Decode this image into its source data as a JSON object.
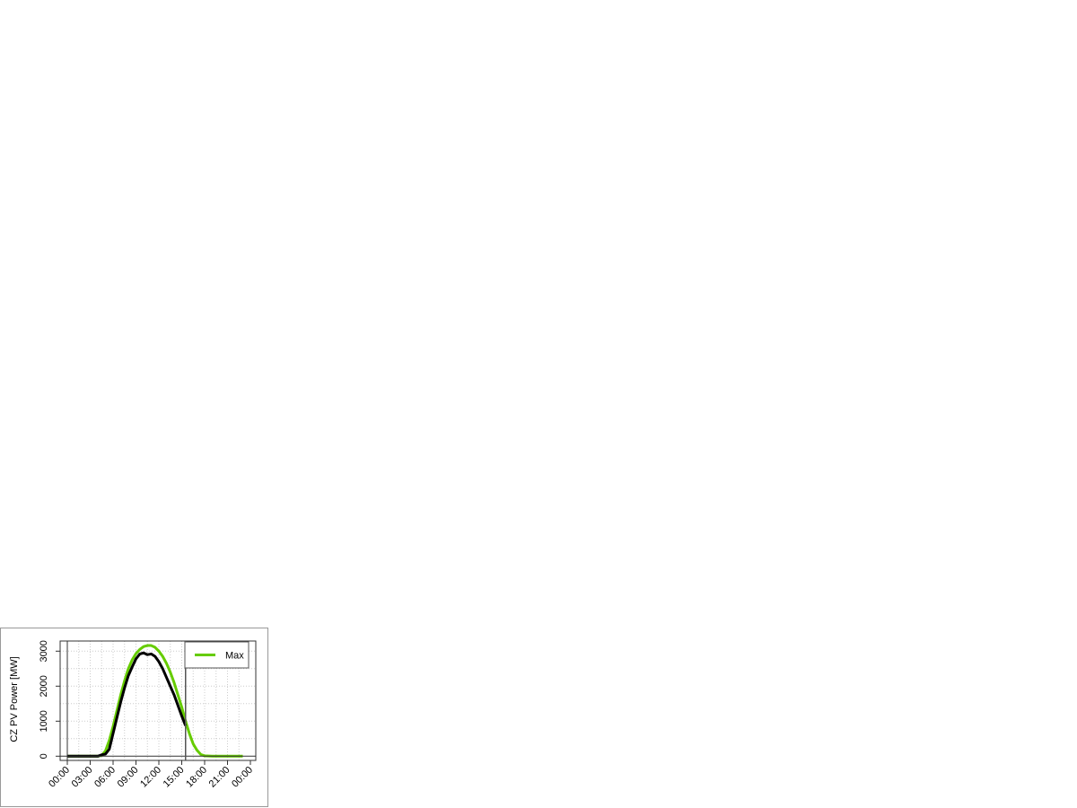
{
  "chart_data": {
    "type": "line",
    "title": "",
    "xlabel": "",
    "ylabel": "CZ PV Power [MW]",
    "xlim": [
      0,
      24
    ],
    "ylim": [
      0,
      3300
    ],
    "x_ticks": [
      "00:00",
      "03:00",
      "06:00",
      "09:00",
      "12:00",
      "15:00",
      "18:00",
      "21:00",
      "00:00"
    ],
    "y_ticks": [
      0,
      1000,
      2000,
      3000
    ],
    "grid": true,
    "legend_position": "top-right",
    "current_time_marker_hours": 15.5,
    "series": [
      {
        "name": "Max",
        "color": "#66cc00",
        "x": [
          0,
          1,
          2,
          3,
          4,
          4.5,
          5,
          5.5,
          6,
          6.5,
          7,
          7.5,
          8,
          8.5,
          9,
          9.5,
          10,
          10.5,
          11,
          11.5,
          12,
          12.5,
          13,
          13.5,
          14,
          14.5,
          15,
          15.5,
          16,
          16.5,
          17,
          17.5,
          18,
          19,
          20,
          21,
          22,
          23
        ],
        "y": [
          0,
          0,
          0,
          0,
          0,
          20,
          150,
          450,
          850,
          1300,
          1750,
          2150,
          2500,
          2750,
          2930,
          3050,
          3130,
          3160,
          3160,
          3110,
          3000,
          2850,
          2650,
          2400,
          2100,
          1750,
          1400,
          1000,
          650,
          350,
          170,
          50,
          10,
          0,
          0,
          0,
          0,
          0
        ]
      },
      {
        "color": "#000000",
        "x": [
          0,
          1,
          2,
          3,
          4,
          4.5,
          5,
          5.5,
          6,
          6.5,
          7,
          7.5,
          8,
          8.5,
          9,
          9.5,
          10,
          10.5,
          11,
          11.5,
          12,
          12.5,
          13,
          13.5,
          14,
          14.5,
          15,
          15.5
        ],
        "y": [
          0,
          0,
          0,
          0,
          0,
          40,
          60,
          200,
          650,
          1100,
          1550,
          1950,
          2300,
          2550,
          2780,
          2920,
          2950,
          2900,
          2920,
          2850,
          2700,
          2500,
          2250,
          2000,
          1750,
          1450,
          1150,
          870
        ]
      }
    ]
  }
}
